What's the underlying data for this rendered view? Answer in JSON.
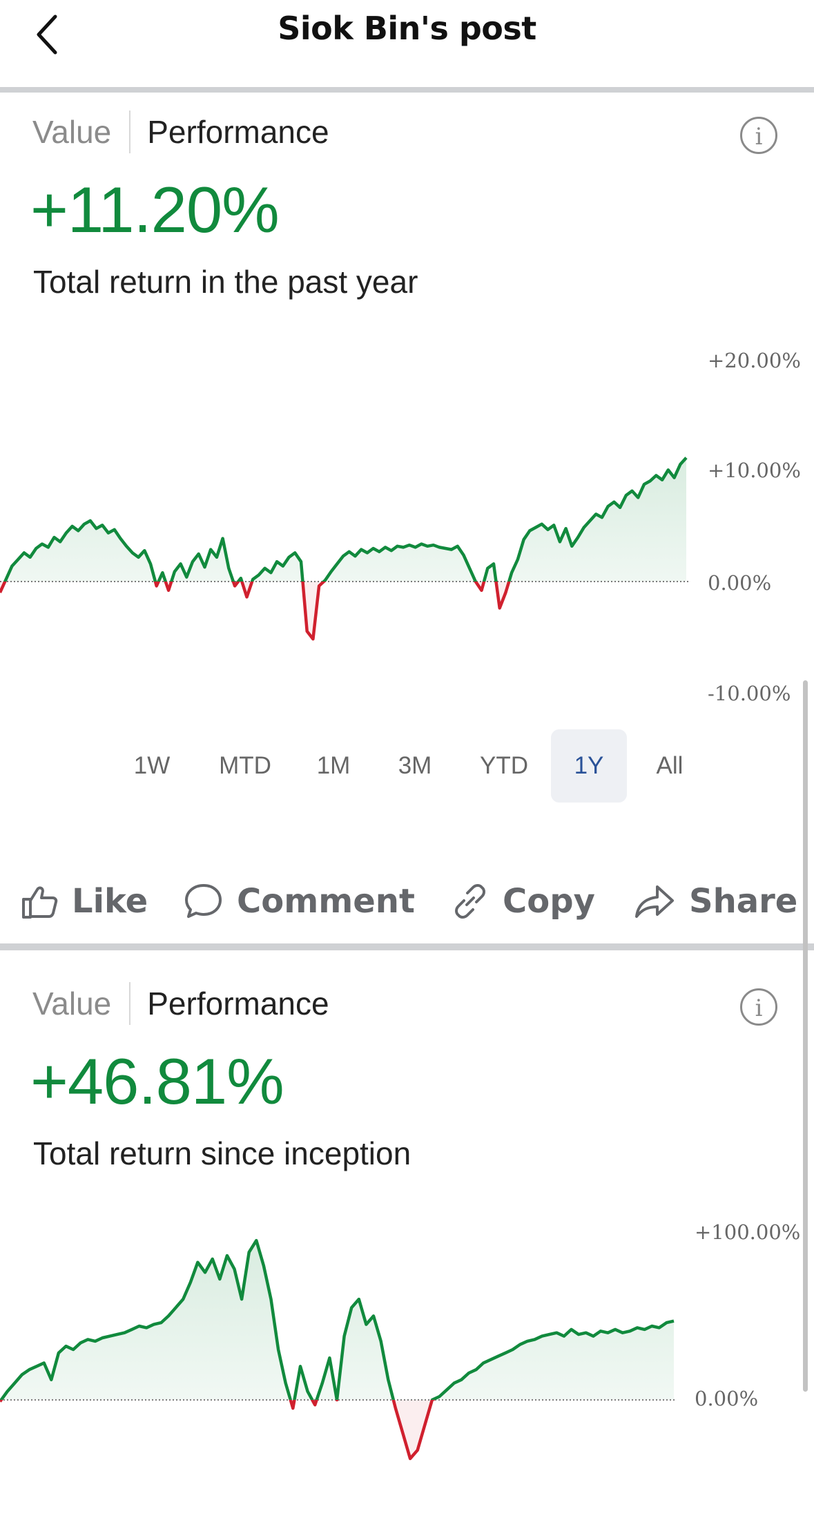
{
  "header": {
    "title": "Siok Bin's post",
    "back_icon": "chevron-left-icon"
  },
  "cards": [
    {
      "tabs": {
        "inactive": "Value",
        "active": "Performance"
      },
      "return_value": "+11.20%",
      "return_caption": "Total return in the past year",
      "chart_data": {
        "type": "area",
        "y_ticks": [
          "+20.00%",
          "+10.00%",
          "0.00%",
          "-10.00%"
        ],
        "ylim": [
          -10,
          20
        ],
        "baseline": 0,
        "positive_color": "#118a3d",
        "negative_color": "#d0202e",
        "values": [
          -1,
          0.2,
          1.4,
          2,
          2.6,
          2.2,
          3,
          3.4,
          3.1,
          4,
          3.6,
          4.4,
          5,
          4.6,
          5.2,
          5.5,
          4.8,
          5.1,
          4.4,
          4.7,
          3.9,
          3.2,
          2.6,
          2.2,
          2.8,
          1.6,
          -0.4,
          0.8,
          -0.8,
          0.9,
          1.6,
          0.4,
          1.8,
          2.5,
          1.3,
          2.9,
          2.2,
          3.9,
          1.2,
          -0.4,
          0.3,
          -1.4,
          0.2,
          0.6,
          1.2,
          0.8,
          1.8,
          1.4,
          2.2,
          2.6,
          1.8,
          -4.5,
          -5.2,
          -0.4,
          0.1,
          0.9,
          1.6,
          2.3,
          2.7,
          2.3,
          2.9,
          2.6,
          3,
          2.7,
          3.1,
          2.8,
          3.2,
          3.1,
          3.3,
          3.1,
          3.4,
          3.2,
          3.3,
          3.1,
          3,
          2.9,
          3.2,
          2.4,
          1.2,
          0,
          -0.8,
          1.2,
          1.6,
          -2.4,
          -1,
          0.8,
          2,
          3.8,
          4.6,
          4.9,
          5.2,
          4.7,
          5.1,
          3.6,
          4.8,
          3.2,
          4,
          4.9,
          5.5,
          6.1,
          5.8,
          6.8,
          7.2,
          6.7,
          7.8,
          8.2,
          7.6,
          8.8,
          9.1,
          9.6,
          9.2,
          10.1,
          9.4,
          10.6,
          11.2
        ]
      },
      "ranges": [
        "1W",
        "MTD",
        "1M",
        "3M",
        "YTD",
        "1Y",
        "All"
      ],
      "selected_range": "1Y"
    },
    {
      "tabs": {
        "inactive": "Value",
        "active": "Performance"
      },
      "return_value": "+46.81%",
      "return_caption": "Total return since inception",
      "chart_data": {
        "type": "area",
        "y_ticks": [
          "+100.00%",
          "0.00%"
        ],
        "ylim": [
          -40,
          100
        ],
        "baseline": 0,
        "positive_color": "#118a3d",
        "negative_color": "#d0202e",
        "values": [
          -1,
          5,
          10,
          15,
          18,
          20,
          22,
          12,
          28,
          32,
          30,
          34,
          36,
          35,
          37,
          38,
          39,
          40,
          42,
          44,
          43,
          45,
          46,
          50,
          55,
          60,
          70,
          82,
          76,
          84,
          72,
          86,
          78,
          60,
          88,
          95,
          80,
          60,
          30,
          10,
          -5,
          20,
          5,
          -3,
          10,
          25,
          0,
          38,
          55,
          60,
          45,
          50,
          35,
          12,
          -5,
          -20,
          -35,
          -30,
          -15,
          0,
          2,
          6,
          10,
          12,
          16,
          18,
          22,
          24,
          26,
          28,
          30,
          33,
          35,
          36,
          38,
          39,
          40,
          38,
          42,
          39,
          40,
          38,
          41,
          40,
          42,
          40,
          41,
          43,
          42,
          44,
          43,
          46,
          47
        ]
      },
      "ranges": [],
      "selected_range": ""
    }
  ],
  "actions": [
    {
      "label": "Like",
      "icon": "thumbs-up-icon"
    },
    {
      "label": "Comment",
      "icon": "comment-icon"
    },
    {
      "label": "Copy",
      "icon": "link-icon"
    },
    {
      "label": "Share",
      "icon": "share-icon"
    }
  ]
}
